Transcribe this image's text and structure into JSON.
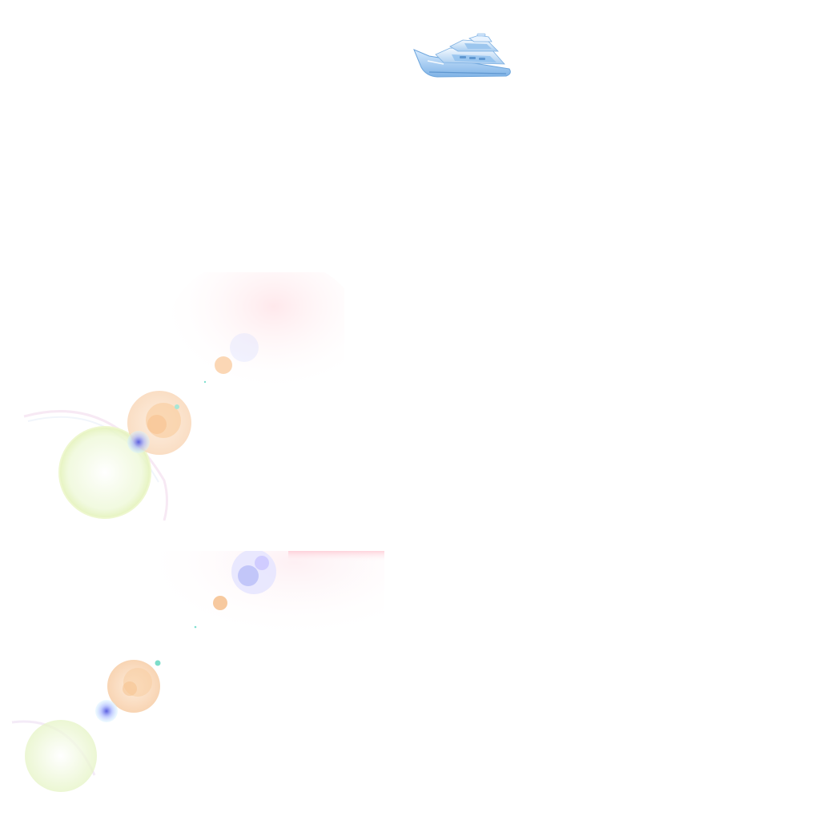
{
  "scene": {
    "background": "#ffffff",
    "yacht": {
      "icon": "yacht-icon",
      "hull_color": "#9cc6ee",
      "highlight_color": "#e8f3ff",
      "shadow_color": "#6fa6dc"
    },
    "flares": {
      "icon": "lens-flare-icon",
      "palette": {
        "peach": "#f7c79a",
        "lime": "#e9f7c8",
        "lilac": "#c9c6ff",
        "blue": "#6f73e6",
        "pink": "#ff9ab0",
        "teal": "#7fe0d0"
      }
    }
  }
}
